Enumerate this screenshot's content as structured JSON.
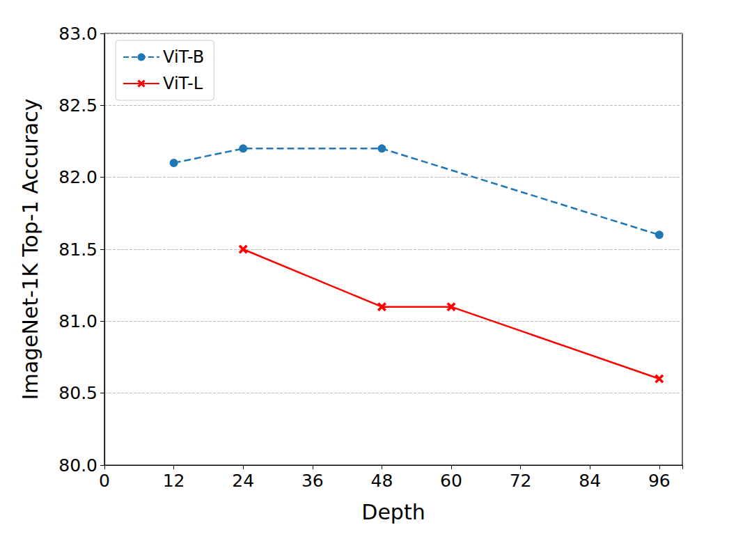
{
  "chart_data": {
    "type": "line",
    "x_label": "Depth",
    "y_label": "ImageNet-1K Top-1 Accuracy",
    "series": [
      {
        "name": "ViT-B",
        "color": "#1f77b4",
        "marker": "circle",
        "line_style": "dashed",
        "x": [
          12,
          24,
          48,
          96
        ],
        "values": [
          82.1,
          82.2,
          82.2,
          81.6
        ]
      },
      {
        "name": "ViT-L",
        "color": "#ff0000",
        "marker": "x",
        "line_style": "solid",
        "x": [
          24,
          48,
          60,
          96
        ],
        "values": [
          81.5,
          81.1,
          81.1,
          80.6
        ]
      }
    ],
    "xlim": [
      0,
      100
    ],
    "xticks": [
      0,
      12,
      24,
      36,
      48,
      60,
      72,
      84,
      96
    ],
    "ylim": [
      80,
      83
    ],
    "yticks": [
      {
        "value": 80,
        "label": "80.0"
      },
      {
        "value": 80.5,
        "label": "80.5"
      },
      {
        "value": 81,
        "label": "81.0"
      },
      {
        "value": 81.5,
        "label": "81.5"
      },
      {
        "value": 82,
        "label": "82.0"
      },
      {
        "value": 82.5,
        "label": "82.5"
      },
      {
        "value": 83,
        "label": "83.0"
      }
    ],
    "grid": true,
    "legend": "upper left"
  }
}
